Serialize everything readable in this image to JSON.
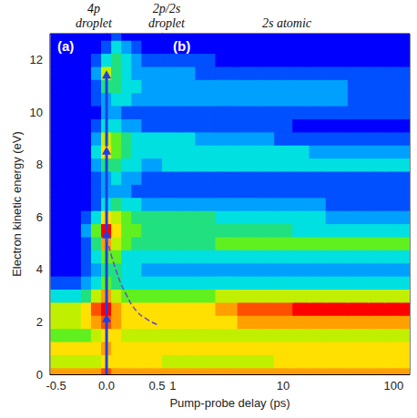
{
  "chart_data": {
    "type": "heatmap",
    "xlabel": "Pump-probe delay (ps)",
    "ylabel": "Electron kinetic energy (eV)",
    "headers": [
      "4p\ndroplet",
      "2p/2s\ndroplet",
      "2s atomic"
    ],
    "y": [
      0,
      0.5,
      1,
      1.5,
      2,
      2.5,
      3,
      3.5,
      4,
      4.5,
      5,
      5.5,
      6,
      6.5,
      7,
      7.5,
      8,
      8.5,
      9,
      9.5,
      10,
      10.5,
      11,
      11.5,
      12,
      12.5,
      13
    ],
    "ylim": [
      0,
      13
    ],
    "yticks": [
      0,
      2,
      4,
      6,
      8,
      10,
      12
    ],
    "zlim": [
      0,
      10
    ],
    "panels": [
      {
        "label": "(a)",
        "x": [
          -0.5,
          -0.4,
          -0.3,
          -0.2,
          -0.1,
          0,
          0.1,
          0.2,
          0.3,
          0.4,
          0.5
        ],
        "xlim": [
          -0.56,
          0.55
        ],
        "xticks": [
          -0.5,
          {
            "value": 0,
            "label": "0.0"
          },
          0.5
        ],
        "z": [
          [
            8,
            8,
            8,
            8,
            8,
            9,
            8,
            8,
            8,
            8,
            8
          ],
          [
            6,
            6,
            6,
            6,
            6,
            7,
            7,
            7,
            7,
            7,
            7
          ],
          [
            7,
            7,
            7,
            7,
            7,
            8,
            7,
            7,
            7,
            7,
            7
          ],
          [
            5,
            5,
            5,
            5,
            6,
            7,
            7,
            6,
            6,
            6,
            6
          ],
          [
            6,
            6,
            6,
            7,
            8,
            9,
            8,
            7,
            7,
            7,
            7
          ],
          [
            6,
            6,
            6,
            7,
            9,
            10,
            8,
            7,
            7,
            7,
            7
          ],
          [
            3,
            3,
            3,
            4,
            6,
            8,
            6,
            5,
            5,
            5,
            5
          ],
          [
            1,
            1,
            1,
            2,
            3,
            5,
            4,
            3,
            3,
            3,
            3
          ],
          [
            0,
            0,
            0,
            1,
            2,
            4,
            4,
            3,
            3,
            2,
            2
          ],
          [
            0,
            0,
            0,
            1,
            3,
            5,
            5,
            3,
            3,
            3,
            3
          ],
          [
            0,
            0,
            0,
            1,
            4,
            8,
            6,
            5,
            4,
            4,
            4
          ],
          [
            0,
            0,
            0,
            2,
            5,
            10,
            7,
            5,
            5,
            4,
            4
          ],
          [
            0,
            0,
            0,
            1,
            3,
            7,
            6,
            5,
            4,
            4,
            4
          ],
          [
            0,
            0,
            0,
            0,
            1,
            3,
            4,
            3,
            3,
            2,
            2
          ],
          [
            0,
            0,
            0,
            0,
            1,
            2,
            2,
            2,
            1,
            1,
            1
          ],
          [
            0,
            0,
            0,
            0,
            1,
            2,
            3,
            2,
            2,
            1,
            1
          ],
          [
            0,
            0,
            0,
            0,
            2,
            4,
            4,
            3,
            3,
            2,
            2
          ],
          [
            0,
            0,
            0,
            0,
            3,
            7,
            5,
            4,
            3,
            3,
            3
          ],
          [
            0,
            0,
            0,
            0,
            2,
            6,
            5,
            4,
            3,
            3,
            3
          ],
          [
            0,
            0,
            0,
            0,
            1,
            3,
            3,
            2,
            2,
            1,
            1
          ],
          [
            0,
            0,
            0,
            0,
            0,
            2,
            2,
            1,
            1,
            1,
            1
          ],
          [
            0,
            0,
            0,
            0,
            1,
            2,
            3,
            3,
            2,
            2,
            2
          ],
          [
            0,
            0,
            0,
            0,
            1,
            4,
            4,
            3,
            3,
            2,
            2
          ],
          [
            0,
            0,
            0,
            0,
            2,
            6,
            4,
            3,
            2,
            2,
            2
          ],
          [
            0,
            0,
            0,
            0,
            1,
            3,
            4,
            3,
            2,
            1,
            1
          ],
          [
            0,
            0,
            0,
            0,
            0,
            1,
            3,
            2,
            1,
            0,
            0
          ],
          [
            0,
            0,
            0,
            0,
            0,
            0,
            1,
            0,
            0,
            0,
            0
          ]
        ],
        "arrows": {
          "x": 0,
          "y": [
            0,
            2.3,
            5.5,
            8.7,
            11.6
          ]
        },
        "dashed_curve": {
          "x": [
            0,
            0.1,
            0.2,
            0.3,
            0.4,
            0.5
          ],
          "y": [
            5.2,
            3.9,
            3.0,
            2.4,
            2.1,
            1.9
          ],
          "line_style": "dashed"
        }
      },
      {
        "label": "(b)",
        "log": "x",
        "x": [
          0.9,
          1.3,
          2,
          3,
          5,
          7,
          10,
          15,
          20,
          30,
          50,
          70,
          100,
          140
        ],
        "xlim": [
          0.8,
          140
        ],
        "xticks": [
          1,
          10,
          100
        ],
        "z": [
          [
            8,
            8,
            8,
            8,
            8,
            8,
            8,
            8,
            8,
            8,
            8,
            8,
            8,
            8
          ],
          [
            6,
            6,
            6,
            6,
            6,
            6,
            7,
            7,
            7,
            7,
            7,
            7,
            7,
            7
          ],
          [
            7,
            7,
            7,
            7,
            7,
            7,
            7,
            7,
            7,
            7,
            7,
            7,
            7,
            7
          ],
          [
            6,
            6,
            6,
            6,
            6,
            6,
            6,
            6,
            6,
            6,
            6,
            6,
            6,
            6
          ],
          [
            7,
            7,
            7,
            7,
            8,
            8,
            8,
            8,
            8,
            8,
            8,
            8,
            8,
            8
          ],
          [
            7,
            7,
            7,
            8,
            9,
            9,
            9,
            10,
            10,
            10,
            10,
            10,
            10,
            10
          ],
          [
            5,
            5,
            5,
            6,
            6,
            6,
            6,
            6,
            6,
            6,
            6,
            6,
            6,
            6
          ],
          [
            3,
            3,
            3,
            3,
            3,
            3,
            3,
            3,
            3,
            3,
            3,
            3,
            3,
            3
          ],
          [
            2,
            2,
            2,
            2,
            2,
            2,
            2,
            2,
            2,
            2,
            2,
            2,
            2,
            2
          ],
          [
            3,
            3,
            3,
            3,
            3,
            3,
            3,
            3,
            3,
            3,
            3,
            3,
            3,
            3
          ],
          [
            4,
            4,
            4,
            5,
            5,
            5,
            5,
            5,
            5,
            5,
            5,
            5,
            5,
            5
          ],
          [
            4,
            4,
            4,
            4,
            4,
            4,
            4,
            3,
            3,
            3,
            3,
            3,
            3,
            3
          ],
          [
            4,
            4,
            4,
            3,
            3,
            3,
            3,
            3,
            3,
            2,
            2,
            2,
            2,
            2
          ],
          [
            2,
            2,
            2,
            2,
            2,
            2,
            2,
            2,
            2,
            1,
            1,
            1,
            1,
            1
          ],
          [
            1,
            1,
            1,
            1,
            1,
            1,
            1,
            1,
            1,
            1,
            1,
            1,
            1,
            1
          ],
          [
            1,
            1,
            1,
            1,
            1,
            1,
            1,
            1,
            1,
            1,
            1,
            1,
            1,
            1
          ],
          [
            3,
            3,
            3,
            3,
            3,
            3,
            3,
            3,
            3,
            3,
            3,
            3,
            3,
            3
          ],
          [
            3,
            3,
            3,
            3,
            3,
            3,
            3,
            3,
            2,
            2,
            2,
            2,
            2,
            2
          ],
          [
            3,
            3,
            2,
            2,
            2,
            2,
            1,
            1,
            1,
            1,
            1,
            1,
            1,
            1
          ],
          [
            1,
            1,
            1,
            1,
            1,
            1,
            1,
            0,
            0,
            0,
            0,
            0,
            0,
            0
          ],
          [
            1,
            1,
            1,
            1,
            1,
            1,
            1,
            1,
            1,
            1,
            1,
            1,
            1,
            1
          ],
          [
            2,
            2,
            2,
            2,
            2,
            2,
            2,
            2,
            2,
            2,
            1,
            1,
            1,
            1
          ],
          [
            2,
            2,
            2,
            2,
            2,
            2,
            2,
            2,
            2,
            2,
            1,
            1,
            1,
            1
          ],
          [
            2,
            2,
            1,
            1,
            1,
            1,
            1,
            1,
            1,
            1,
            1,
            1,
            1,
            1
          ],
          [
            1,
            1,
            1,
            0,
            0,
            0,
            0,
            0,
            0,
            0,
            0,
            0,
            0,
            0
          ],
          [
            0,
            0,
            0,
            0,
            0,
            0,
            0,
            0,
            0,
            0,
            0,
            0,
            0,
            0
          ],
          [
            0,
            0,
            0,
            0,
            0,
            0,
            0,
            0,
            0,
            0,
            0,
            0,
            0,
            0
          ]
        ]
      }
    ]
  }
}
